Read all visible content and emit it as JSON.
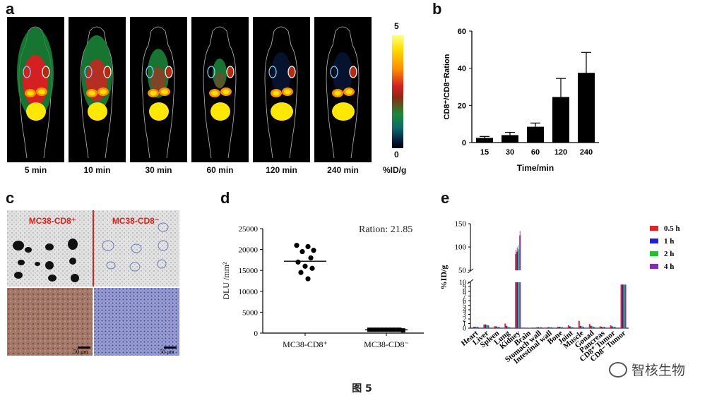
{
  "panels": {
    "a": {
      "letter": "a",
      "times": [
        "5 min",
        "10 min",
        "30 min",
        "60 min",
        "120 min",
        "240 min"
      ],
      "colorbar": {
        "max": "5",
        "min": "0",
        "unit": "%ID/g"
      }
    },
    "b": {
      "letter": "b"
    },
    "c": {
      "letter": "c",
      "left_title": "MC38-CD8⁺",
      "right_title": "MC38-CD8⁻",
      "scale_bar": "50 μm"
    },
    "d": {
      "letter": "d",
      "annotation": "Ration: 21.85"
    },
    "e": {
      "letter": "e"
    }
  },
  "caption": "图 5",
  "watermark": "智核生物",
  "chart_data": [
    {
      "id": "b",
      "type": "bar",
      "categories": [
        "15",
        "30",
        "60",
        "120",
        "240"
      ],
      "values": [
        2.5,
        4.0,
        8.5,
        24.5,
        37.5
      ],
      "errors": [
        0.8,
        1.5,
        2.0,
        10.0,
        11.0
      ],
      "xlabel": "Time/min",
      "ylabel": "CD8⁺/CD8⁻Ration",
      "ylim": [
        0,
        60
      ],
      "yticks": [
        0,
        20,
        40,
        60
      ],
      "color": "#000000"
    },
    {
      "id": "d",
      "type": "scatter",
      "categories": [
        "MC38-CD8⁺",
        "MC38-CD8⁻"
      ],
      "points": [
        [
          21000,
          20700,
          19800,
          19500,
          18000,
          17000,
          16000,
          15500,
          14500,
          13000
        ],
        [
          800,
          800,
          800,
          800,
          800,
          800,
          800,
          800,
          800,
          650
        ]
      ],
      "means": [
        17200,
        780
      ],
      "ylabel": "DLU /mm²",
      "ylim": [
        0,
        25000
      ],
      "yticks": [
        0,
        5000,
        10000,
        15000,
        20000,
        25000
      ]
    },
    {
      "id": "e",
      "type": "bar",
      "categories": [
        "Heart",
        "Liver",
        "Spleen",
        "Lung",
        "Kidney",
        "Brain",
        "Stomach wall",
        "Intestinal wall",
        "Bone",
        "Joint",
        "Muscle",
        "Gonad",
        "Pancreas",
        "CD8⁺ Tumor",
        "CD8⁻ Tumor"
      ],
      "series": [
        {
          "name": "0.5 h",
          "color": "#e8202a",
          "values": [
            0.3,
            0.8,
            0.4,
            1.0,
            85,
            0.1,
            0.2,
            0.2,
            0.3,
            0.6,
            1.6,
            0.9,
            0.4,
            0.6,
            9.5
          ]
        },
        {
          "name": "1 h",
          "color": "#2020d8",
          "values": [
            0.3,
            0.8,
            0.4,
            0.5,
            90,
            0.1,
            0.2,
            0.2,
            0.3,
            0.4,
            0.5,
            0.5,
            0.3,
            0.4,
            9.5
          ]
        },
        {
          "name": "2 h",
          "color": "#22c02a",
          "values": [
            0.3,
            0.7,
            0.3,
            0.3,
            95,
            0.1,
            0.2,
            0.2,
            0.3,
            0.3,
            0.4,
            0.4,
            0.3,
            0.3,
            9.5
          ]
        },
        {
          "name": "4 h",
          "color": "#8a2ab0",
          "values": [
            0.3,
            0.6,
            0.3,
            0.2,
            125,
            0.1,
            0.2,
            0.2,
            0.2,
            0.2,
            0.3,
            0.3,
            0.3,
            0.3,
            9.5
          ]
        }
      ],
      "ylabel": "%ID/g",
      "ylim_lower": [
        0,
        10
      ],
      "ylim_upper": [
        50,
        150
      ],
      "yticks_lower": [
        0,
        1,
        2,
        3,
        4,
        5,
        6,
        7,
        8,
        9,
        10
      ],
      "yticks_upper": [
        50,
        100,
        150
      ],
      "legend_position": "right"
    }
  ]
}
